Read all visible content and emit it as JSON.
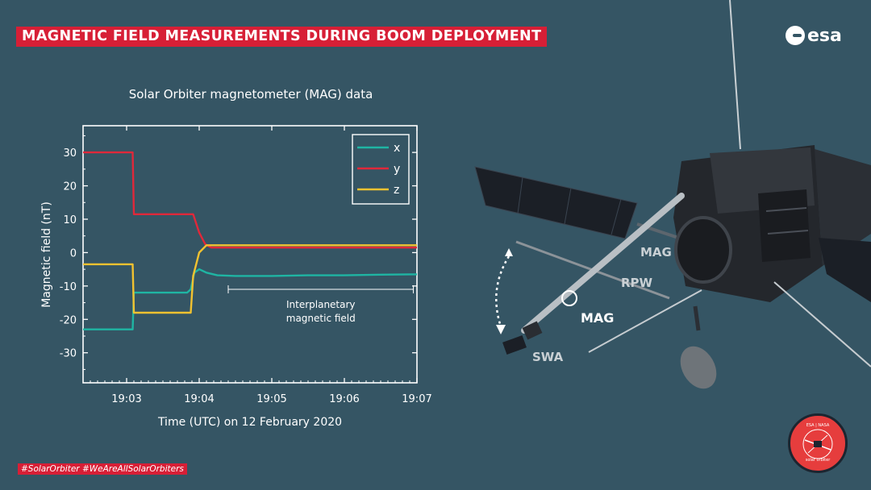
{
  "banner_title": "MAGNETIC FIELD MEASUREMENTS DURING BOOM DEPLOYMENT",
  "logo_text": "esa",
  "hashtags": "#SolarOrbiter  #WeAreAllSolarOrbiters",
  "badge": {
    "top": "ESA | NASA",
    "bottom": "solar orbiter"
  },
  "colors": {
    "background": "#355564",
    "banner": "#d71f36",
    "x_series": "#1fb5a3",
    "y_series": "#e0283a",
    "z_series": "#f2c230"
  },
  "chart_data": {
    "type": "line",
    "title": "Solar Orbiter magnetometer (MAG) data",
    "xlabel": "Time (UTC) on 12 February 2020",
    "ylabel": "Magnetic field (nT)",
    "xlim": [
      "19:02:24",
      "19:07:00"
    ],
    "ylim": [
      -39,
      38
    ],
    "xticks": [
      "19:03",
      "19:04",
      "19:05",
      "19:06",
      "19:07"
    ],
    "yticks": [
      30,
      20,
      10,
      0,
      -10,
      -20,
      -30
    ],
    "legend": "top-right",
    "annotation": "Interplanetary\nmagnetic field",
    "annotation_range": [
      "19:04:24",
      "19:06:57"
    ],
    "series": [
      {
        "name": "x",
        "points": [
          [
            "19:02:24",
            -23
          ],
          [
            "19:03:05",
            -23
          ],
          [
            "19:03:06",
            -12
          ],
          [
            "19:03:30",
            -12
          ],
          [
            "19:03:50",
            -12
          ],
          [
            "19:03:53",
            -11
          ],
          [
            "19:03:56",
            -6
          ],
          [
            "19:04:00",
            -5
          ],
          [
            "19:04:06",
            -6
          ],
          [
            "19:04:15",
            -6.8
          ],
          [
            "19:04:30",
            -7
          ],
          [
            "19:05:00",
            -7
          ],
          [
            "19:05:30",
            -6.8
          ],
          [
            "19:06:00",
            -6.8
          ],
          [
            "19:06:30",
            -6.6
          ],
          [
            "19:07:00",
            -6.5
          ]
        ]
      },
      {
        "name": "y",
        "points": [
          [
            "19:02:24",
            30
          ],
          [
            "19:03:05",
            30
          ],
          [
            "19:03:06",
            11.5
          ],
          [
            "19:03:30",
            11.5
          ],
          [
            "19:03:55",
            11.5
          ],
          [
            "19:04:00",
            6
          ],
          [
            "19:04:05",
            2.5
          ],
          [
            "19:04:10",
            1.5
          ],
          [
            "19:04:30",
            1.5
          ],
          [
            "19:05:00",
            1.5
          ],
          [
            "19:06:00",
            1.5
          ],
          [
            "19:07:00",
            1.5
          ]
        ]
      },
      {
        "name": "z",
        "points": [
          [
            "19:02:24",
            -3.5
          ],
          [
            "19:03:05",
            -3.5
          ],
          [
            "19:03:06",
            -18
          ],
          [
            "19:03:30",
            -18
          ],
          [
            "19:03:53",
            -18
          ],
          [
            "19:03:55",
            -7
          ],
          [
            "19:04:00",
            0
          ],
          [
            "19:04:06",
            2.2
          ],
          [
            "19:04:20",
            2.2
          ],
          [
            "19:05:00",
            2.2
          ],
          [
            "19:06:00",
            2.2
          ],
          [
            "19:07:00",
            2.2
          ]
        ]
      }
    ]
  },
  "spacecraft_labels": {
    "mag_boom": "MAG",
    "mag_body": "MAG",
    "rpw": "RPW",
    "swa": "SWA"
  }
}
